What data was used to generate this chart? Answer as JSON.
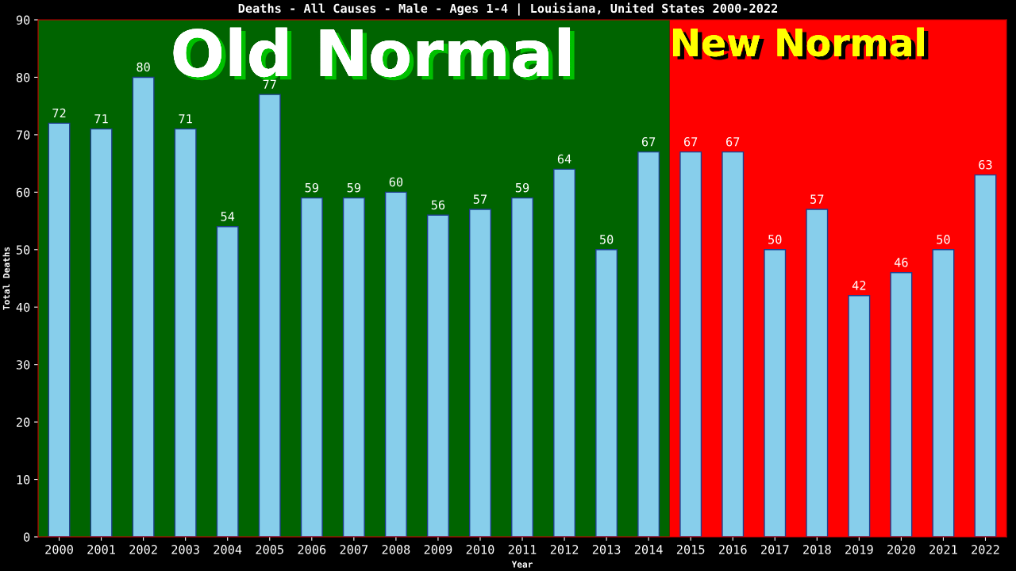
{
  "chart_data": {
    "type": "bar",
    "title": "Deaths - All Causes - Male - Ages 1-4 | Louisiana, United States 2000-2022",
    "xlabel": "Year",
    "ylabel": "Total Deaths",
    "categories": [
      "2000",
      "2001",
      "2002",
      "2003",
      "2004",
      "2005",
      "2006",
      "2007",
      "2008",
      "2009",
      "2010",
      "2011",
      "2012",
      "2013",
      "2014",
      "2015",
      "2016",
      "2017",
      "2018",
      "2019",
      "2020",
      "2021",
      "2022"
    ],
    "values": [
      72,
      71,
      80,
      71,
      54,
      77,
      59,
      59,
      60,
      56,
      57,
      59,
      64,
      50,
      67,
      67,
      67,
      50,
      57,
      42,
      46,
      50,
      63
    ],
    "color": "#87ceeb",
    "ylim": [
      0,
      90
    ],
    "yticks": [
      0,
      10,
      20,
      30,
      40,
      50,
      60,
      70,
      80,
      90
    ],
    "data_labels": true,
    "grid": false,
    "legend": false,
    "bands": [
      {
        "axis": "x",
        "from": "2000",
        "to": "2014",
        "label": "Old Normal",
        "color": "#006400"
      },
      {
        "axis": "x",
        "from": "2015",
        "to": "2022",
        "label": "New Normal",
        "color": "#ff0000"
      }
    ]
  }
}
